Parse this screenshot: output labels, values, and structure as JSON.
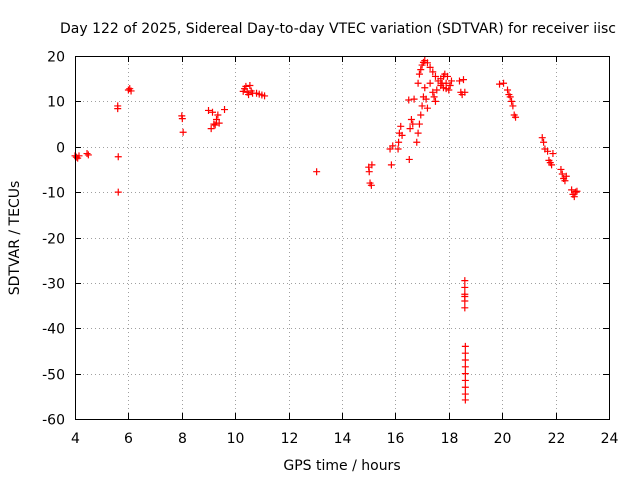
{
  "chart_data": {
    "type": "scatter",
    "title": "Day 122 of 2025, Sidereal Day-to-day VTEC variation (SDTVAR) for receiver iisc",
    "xlabel": "GPS time / hours",
    "ylabel": "SDTVAR / TECUs",
    "xlim": [
      4,
      24
    ],
    "ylim": [
      -60,
      20
    ],
    "xticks": [
      "4",
      "6",
      "8",
      "10",
      "12",
      "14",
      "16",
      "18",
      "20",
      "22",
      "24"
    ],
    "yticks": [
      "20",
      "10",
      "0",
      "-10",
      "-20",
      "-30",
      "-40",
      "-50",
      "-60"
    ],
    "grid": true,
    "marker": "plus",
    "color": "#ff0000",
    "series": [
      {
        "name": "SDTVAR",
        "points": [
          [
            4.0,
            -2.0
          ],
          [
            4.05,
            -2.3
          ],
          [
            4.1,
            -2.5
          ],
          [
            4.15,
            -2.0
          ],
          [
            4.45,
            -1.5
          ],
          [
            4.5,
            -1.8
          ],
          [
            5.6,
            9.0
          ],
          [
            5.6,
            8.4
          ],
          [
            5.62,
            -2.2
          ],
          [
            5.62,
            -10.0
          ],
          [
            6.0,
            12.5
          ],
          [
            6.05,
            12.8
          ],
          [
            6.1,
            12.3
          ],
          [
            8.0,
            6.8
          ],
          [
            8.02,
            6.2
          ],
          [
            8.05,
            3.2
          ],
          [
            9.0,
            8.0
          ],
          [
            9.1,
            4.0
          ],
          [
            9.15,
            7.6
          ],
          [
            9.2,
            5.0
          ],
          [
            9.25,
            4.8
          ],
          [
            9.3,
            6.0
          ],
          [
            9.35,
            7.0
          ],
          [
            9.4,
            5.2
          ],
          [
            9.6,
            8.2
          ],
          [
            10.3,
            12.2
          ],
          [
            10.35,
            12.8
          ],
          [
            10.4,
            13.3
          ],
          [
            10.45,
            12.0
          ],
          [
            10.5,
            11.5
          ],
          [
            10.55,
            13.5
          ],
          [
            10.6,
            12.3
          ],
          [
            10.65,
            11.8
          ],
          [
            10.8,
            11.8
          ],
          [
            10.9,
            11.6
          ],
          [
            11.0,
            11.4
          ],
          [
            11.1,
            11.2
          ],
          [
            13.05,
            -5.5
          ],
          [
            15.0,
            -4.5
          ],
          [
            15.02,
            -5.5
          ],
          [
            15.05,
            -8.0
          ],
          [
            15.1,
            -8.5
          ],
          [
            15.12,
            -4.0
          ],
          [
            15.8,
            -0.5
          ],
          [
            15.85,
            -4.0
          ],
          [
            15.9,
            0.2
          ],
          [
            16.1,
            -0.5
          ],
          [
            16.12,
            1.0
          ],
          [
            16.15,
            3.0
          ],
          [
            16.2,
            4.5
          ],
          [
            16.25,
            2.5
          ],
          [
            16.5,
            10.3
          ],
          [
            16.52,
            -2.8
          ],
          [
            16.55,
            4.0
          ],
          [
            16.6,
            6.0
          ],
          [
            16.65,
            5.0
          ],
          [
            16.7,
            10.5
          ],
          [
            16.8,
            1.0
          ],
          [
            16.85,
            3.0
          ],
          [
            16.9,
            5.0
          ],
          [
            16.95,
            7.0
          ],
          [
            17.0,
            9.0
          ],
          [
            17.05,
            11.0
          ],
          [
            17.1,
            13.0
          ],
          [
            17.15,
            10.5
          ],
          [
            17.2,
            8.5
          ],
          [
            16.85,
            14.0
          ],
          [
            16.9,
            16.0
          ],
          [
            16.95,
            17.0
          ],
          [
            17.0,
            18.0
          ],
          [
            17.05,
            18.6
          ],
          [
            17.1,
            19.0
          ],
          [
            17.2,
            18.5
          ],
          [
            17.3,
            17.5
          ],
          [
            17.4,
            16.5
          ],
          [
            17.5,
            15.5
          ],
          [
            17.6,
            14.5
          ],
          [
            17.7,
            13.5
          ],
          [
            17.8,
            13.0
          ],
          [
            17.9,
            12.8
          ],
          [
            17.3,
            14.0
          ],
          [
            17.4,
            12.0
          ],
          [
            17.45,
            11.0
          ],
          [
            17.5,
            10.0
          ],
          [
            17.55,
            12.5
          ],
          [
            17.7,
            15.0
          ],
          [
            17.75,
            14.0
          ],
          [
            17.8,
            15.5
          ],
          [
            17.85,
            16.0
          ],
          [
            17.9,
            14.0
          ],
          [
            17.95,
            15.5
          ],
          [
            18.0,
            12.5
          ],
          [
            18.05,
            13.5
          ],
          [
            18.1,
            14.5
          ],
          [
            18.4,
            14.5
          ],
          [
            18.45,
            12.0
          ],
          [
            18.5,
            11.5
          ],
          [
            18.55,
            14.8
          ],
          [
            18.6,
            12.0
          ],
          [
            18.6,
            -29.5
          ],
          [
            18.6,
            -31.0
          ],
          [
            18.6,
            -32.5
          ],
          [
            18.6,
            -34.0
          ],
          [
            18.6,
            -35.5
          ],
          [
            18.6,
            -33.0
          ],
          [
            18.62,
            -44.0
          ],
          [
            18.62,
            -45.5
          ],
          [
            18.62,
            -47.0
          ],
          [
            18.62,
            -48.5
          ],
          [
            18.62,
            -50.0
          ],
          [
            18.62,
            -51.5
          ],
          [
            18.62,
            -53.0
          ],
          [
            18.62,
            -54.5
          ],
          [
            18.62,
            -55.8
          ],
          [
            19.9,
            13.8
          ],
          [
            20.05,
            14.0
          ],
          [
            20.2,
            12.5
          ],
          [
            20.25,
            11.5
          ],
          [
            20.3,
            11.0
          ],
          [
            20.35,
            10.0
          ],
          [
            20.4,
            9.0
          ],
          [
            20.45,
            7.0
          ],
          [
            20.5,
            6.5
          ],
          [
            21.5,
            2.0
          ],
          [
            21.55,
            1.0
          ],
          [
            21.6,
            -0.5
          ],
          [
            21.7,
            -1.0
          ],
          [
            21.75,
            -3.0
          ],
          [
            21.8,
            -3.5
          ],
          [
            21.85,
            -4.0
          ],
          [
            21.9,
            -1.5
          ],
          [
            22.2,
            -5.0
          ],
          [
            22.25,
            -6.0
          ],
          [
            22.3,
            -7.0
          ],
          [
            22.35,
            -7.5
          ],
          [
            22.4,
            -6.5
          ],
          [
            22.6,
            -9.5
          ],
          [
            22.65,
            -10.5
          ],
          [
            22.7,
            -11.0
          ],
          [
            22.75,
            -10.0
          ],
          [
            22.8,
            -9.8
          ]
        ]
      }
    ]
  }
}
